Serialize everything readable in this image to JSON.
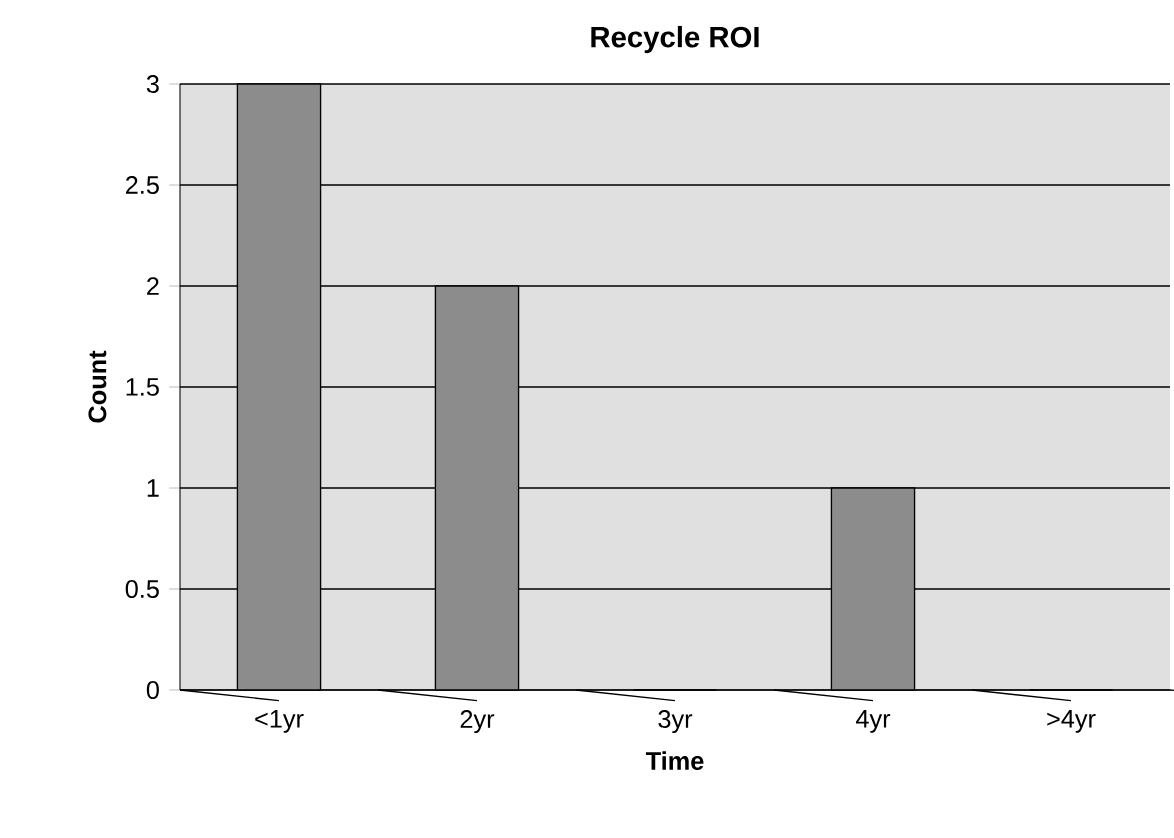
{
  "chart_data": {
    "type": "bar",
    "title": "Recycle ROI",
    "xlabel": "Time",
    "ylabel": "Count",
    "categories": [
      "<1yr",
      "2yr",
      "3yr",
      "4yr",
      ">4yr"
    ],
    "values": [
      3,
      2,
      0,
      1,
      0
    ],
    "color": "#8c8c8c",
    "ylim": [
      0,
      3
    ],
    "yticks": [
      0,
      0.5,
      1,
      1.5,
      2,
      2.5,
      3
    ],
    "grid": "y"
  }
}
